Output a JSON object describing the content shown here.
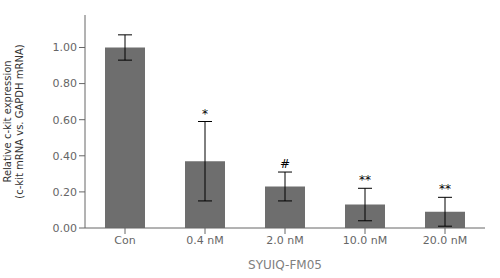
{
  "chart_data": {
    "type": "bar",
    "categories": [
      "Con",
      "0.4 nM",
      "2.0 nM",
      "10.0 nM",
      "20.0 nM"
    ],
    "values": [
      1.0,
      0.37,
      0.23,
      0.13,
      0.09
    ],
    "errors": [
      0.07,
      0.22,
      0.08,
      0.09,
      0.08
    ],
    "color": "#6e6e6e",
    "xlabel": "SYUIQ-FM05",
    "ylabel": "Relative c-kit expression\n(c-kit mRNA vs. GAPDH mRNA)",
    "ylim": [
      0.0,
      1.18
    ],
    "yticks": [
      {
        "value": 0.0,
        "label": "0.00"
      },
      {
        "value": 0.2,
        "label": "0.20"
      },
      {
        "value": 0.4,
        "label": "0.40"
      },
      {
        "value": 0.6,
        "label": "0.60"
      },
      {
        "value": 0.8,
        "label": "0.80"
      },
      {
        "value": 1.0,
        "label": "1.00"
      }
    ],
    "annotations": [
      {
        "category": "0.4 nM",
        "text": "*"
      },
      {
        "category": "2.0 nM",
        "text": "#"
      },
      {
        "category": "10.0 nM",
        "text": "**"
      },
      {
        "category": "20.0 nM",
        "text": "**"
      }
    ],
    "grid": false
  }
}
